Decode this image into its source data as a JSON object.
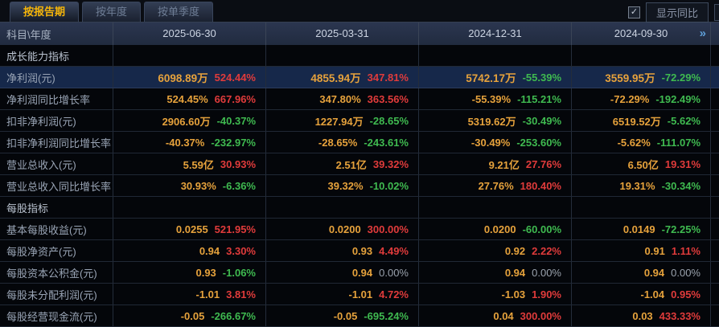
{
  "tabs": [
    {
      "label": "按报告期",
      "active": true
    },
    {
      "label": "按年度",
      "active": false
    },
    {
      "label": "按单季度",
      "active": false
    }
  ],
  "controls": {
    "show_yoy_label": "显示同比",
    "checkbox_checked": true,
    "check_glyph": "✓",
    "next_columns_glyph": "»"
  },
  "colors": {
    "value": "#e6a23c",
    "yoy_up": "#e03b3b",
    "yoy_down": "#3fba50",
    "yoy_flat": "#9aa2ad",
    "active_tab": "#f5b50a",
    "highlight_row_bg": "#16284a"
  },
  "table": {
    "corner_label": "科目\\年度",
    "columns": [
      "2025-06-30",
      "2025-03-31",
      "2024-12-31",
      "2024-09-30"
    ],
    "rows": [
      {
        "type": "section",
        "label": "成长能力指标"
      },
      {
        "type": "data",
        "label": "净利润(元)",
        "highlighted": true,
        "cells": [
          {
            "value": "6098.89万",
            "yoy": "524.44%",
            "trend": "up"
          },
          {
            "value": "4855.94万",
            "yoy": "347.81%",
            "trend": "up"
          },
          {
            "value": "5742.17万",
            "yoy": "-55.39%",
            "trend": "down"
          },
          {
            "value": "3559.95万",
            "yoy": "-72.29%",
            "trend": "down"
          }
        ]
      },
      {
        "type": "data",
        "label": "净利润同比增长率",
        "cells": [
          {
            "value": "524.45%",
            "yoy": "667.96%",
            "trend": "up"
          },
          {
            "value": "347.80%",
            "yoy": "363.56%",
            "trend": "up"
          },
          {
            "value": "-55.39%",
            "yoy": "-115.21%",
            "trend": "down"
          },
          {
            "value": "-72.29%",
            "yoy": "-192.49%",
            "trend": "down"
          }
        ]
      },
      {
        "type": "data",
        "label": "扣非净利润(元)",
        "cells": [
          {
            "value": "2906.60万",
            "yoy": "-40.37%",
            "trend": "down"
          },
          {
            "value": "1227.94万",
            "yoy": "-28.65%",
            "trend": "down"
          },
          {
            "value": "5319.62万",
            "yoy": "-30.49%",
            "trend": "down"
          },
          {
            "value": "6519.52万",
            "yoy": "-5.62%",
            "trend": "down"
          }
        ]
      },
      {
        "type": "data",
        "label": "扣非净利润同比增长率",
        "cells": [
          {
            "value": "-40.37%",
            "yoy": "-232.97%",
            "trend": "down"
          },
          {
            "value": "-28.65%",
            "yoy": "-243.61%",
            "trend": "down"
          },
          {
            "value": "-30.49%",
            "yoy": "-253.60%",
            "trend": "down"
          },
          {
            "value": "-5.62%",
            "yoy": "-111.07%",
            "trend": "down"
          }
        ]
      },
      {
        "type": "data",
        "label": "营业总收入(元)",
        "cells": [
          {
            "value": "5.59亿",
            "yoy": "30.93%",
            "trend": "up"
          },
          {
            "value": "2.51亿",
            "yoy": "39.32%",
            "trend": "up"
          },
          {
            "value": "9.21亿",
            "yoy": "27.76%",
            "trend": "up"
          },
          {
            "value": "6.50亿",
            "yoy": "19.31%",
            "trend": "up"
          }
        ]
      },
      {
        "type": "data",
        "label": "营业总收入同比增长率",
        "cells": [
          {
            "value": "30.93%",
            "yoy": "-6.36%",
            "trend": "down"
          },
          {
            "value": "39.32%",
            "yoy": "-10.02%",
            "trend": "down"
          },
          {
            "value": "27.76%",
            "yoy": "180.40%",
            "trend": "up"
          },
          {
            "value": "19.31%",
            "yoy": "-30.34%",
            "trend": "down"
          }
        ]
      },
      {
        "type": "section",
        "label": "每股指标"
      },
      {
        "type": "data",
        "label": "基本每股收益(元)",
        "cells": [
          {
            "value": "0.0255",
            "yoy": "521.95%",
            "trend": "up"
          },
          {
            "value": "0.0200",
            "yoy": "300.00%",
            "trend": "up"
          },
          {
            "value": "0.0200",
            "yoy": "-60.00%",
            "trend": "down"
          },
          {
            "value": "0.0149",
            "yoy": "-72.25%",
            "trend": "down"
          }
        ]
      },
      {
        "type": "data",
        "label": "每股净资产(元)",
        "cells": [
          {
            "value": "0.94",
            "yoy": "3.30%",
            "trend": "up"
          },
          {
            "value": "0.93",
            "yoy": "4.49%",
            "trend": "up"
          },
          {
            "value": "0.92",
            "yoy": "2.22%",
            "trend": "up"
          },
          {
            "value": "0.91",
            "yoy": "1.11%",
            "trend": "up"
          }
        ]
      },
      {
        "type": "data",
        "label": "每股资本公积金(元)",
        "cells": [
          {
            "value": "0.93",
            "yoy": "-1.06%",
            "trend": "down"
          },
          {
            "value": "0.94",
            "yoy": "0.00%",
            "trend": "flat"
          },
          {
            "value": "0.94",
            "yoy": "0.00%",
            "trend": "flat"
          },
          {
            "value": "0.94",
            "yoy": "0.00%",
            "trend": "flat"
          }
        ]
      },
      {
        "type": "data",
        "label": "每股未分配利润(元)",
        "cells": [
          {
            "value": "-1.01",
            "yoy": "3.81%",
            "trend": "up"
          },
          {
            "value": "-1.01",
            "yoy": "4.72%",
            "trend": "up"
          },
          {
            "value": "-1.03",
            "yoy": "1.90%",
            "trend": "up"
          },
          {
            "value": "-1.04",
            "yoy": "0.95%",
            "trend": "up"
          }
        ]
      },
      {
        "type": "data",
        "label": "每股经营现金流(元)",
        "cells": [
          {
            "value": "-0.05",
            "yoy": "-266.67%",
            "trend": "down"
          },
          {
            "value": "-0.05",
            "yoy": "-695.24%",
            "trend": "down"
          },
          {
            "value": "0.04",
            "yoy": "300.00%",
            "trend": "up"
          },
          {
            "value": "0.03",
            "yoy": "433.33%",
            "trend": "up"
          }
        ]
      }
    ]
  }
}
